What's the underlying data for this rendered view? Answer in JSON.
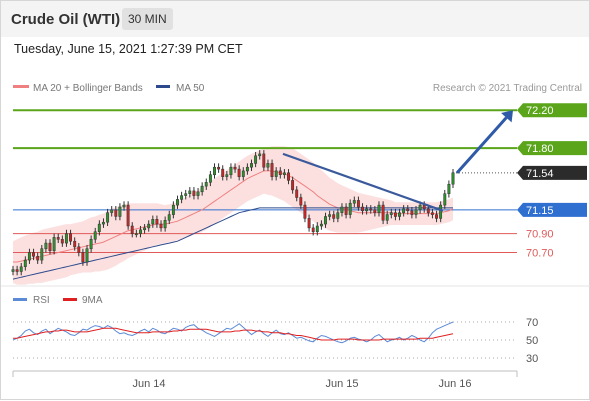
{
  "header": {
    "title": "Crude Oil (WTI)",
    "timeframe": "30 MIN",
    "timestamp": "Tuesday, June 15, 2021 1:27:39 PM CET"
  },
  "legend": {
    "ma20": "MA 20 + Bollinger Bands",
    "ma50": "MA 50",
    "ma20_color": "#f08080",
    "ma50_color": "#2c4a8c"
  },
  "copyright": "Research © 2021 Trading Central",
  "chart_data": [
    {
      "type": "candlestick",
      "title": "Crude Oil (WTI)",
      "y_range": [
        70.4,
        72.35
      ],
      "x_ticks": [
        "Jun 14",
        "Jun 15",
        "Jun 16"
      ],
      "levels": [
        {
          "value": 72.2,
          "label": "72.20",
          "color": "#5aa51a",
          "style": "resistance"
        },
        {
          "value": 71.8,
          "label": "71.80",
          "color": "#5aa51a",
          "style": "resistance"
        },
        {
          "value": 71.54,
          "label": "71.54",
          "color": "#2b2b2b",
          "style": "last price"
        },
        {
          "value": 71.15,
          "label": "71.15",
          "color": "#2f6fd0",
          "style": "pivot"
        },
        {
          "value": 70.9,
          "label": "70.90",
          "color": "#e05a5a",
          "style": "support"
        },
        {
          "value": 70.7,
          "label": "70.70",
          "color": "#e05a5a",
          "style": "support"
        }
      ],
      "closes": [
        70.52,
        70.5,
        70.55,
        70.62,
        70.7,
        70.66,
        70.62,
        70.74,
        70.8,
        70.72,
        70.86,
        70.84,
        70.8,
        70.9,
        70.82,
        70.76,
        70.7,
        70.6,
        70.74,
        70.84,
        70.92,
        71.0,
        71.02,
        71.12,
        71.15,
        71.08,
        71.18,
        71.2,
        70.98,
        70.9,
        70.9,
        70.94,
        70.96,
        71.0,
        71.05,
        71.0,
        70.96,
        71.04,
        71.1,
        71.2,
        71.26,
        71.3,
        71.32,
        71.35,
        71.3,
        71.34,
        71.4,
        71.44,
        71.52,
        71.6,
        71.58,
        71.5,
        71.52,
        71.6,
        71.58,
        71.5,
        71.56,
        71.6,
        71.64,
        71.72,
        71.74,
        71.6,
        71.64,
        71.5,
        71.56,
        71.52,
        71.54,
        71.46,
        71.36,
        71.28,
        71.2,
        71.06,
        70.96,
        70.92,
        70.98,
        71.0,
        71.08,
        71.1,
        71.06,
        71.12,
        71.18,
        71.1,
        71.22,
        71.25,
        71.18,
        71.14,
        71.16,
        71.15,
        71.12,
        71.2,
        71.04,
        71.1,
        71.12,
        71.08,
        71.12,
        71.16,
        71.14,
        71.1,
        71.15,
        71.2,
        71.16,
        71.12,
        71.1,
        71.06,
        71.2,
        71.32,
        71.42,
        71.54
      ],
      "ma20": [
        70.6,
        70.6,
        70.61,
        70.62,
        70.63,
        70.64,
        70.65,
        70.66,
        70.67,
        70.68,
        70.69,
        70.7,
        70.71,
        70.72,
        70.73,
        70.74,
        70.75,
        70.76,
        70.77,
        70.78,
        70.79,
        70.8,
        70.81,
        70.83,
        70.85,
        70.87,
        70.89,
        70.91,
        70.93,
        70.94,
        70.95,
        70.96,
        70.97,
        70.98,
        70.99,
        71.0,
        71.0,
        71.0,
        71.01,
        71.02,
        71.03,
        71.05,
        71.07,
        71.09,
        71.11,
        71.13,
        71.15,
        71.18,
        71.21,
        71.24,
        71.27,
        71.3,
        71.33,
        71.36,
        71.39,
        71.42,
        71.45,
        71.48,
        71.5,
        71.52,
        71.54,
        71.56,
        71.56,
        71.56,
        71.55,
        71.54,
        71.53,
        71.51,
        71.49,
        71.46,
        71.43,
        71.4,
        71.37,
        71.34,
        71.3,
        71.27,
        71.24,
        71.21,
        71.19,
        71.17,
        71.16,
        71.15,
        71.14,
        71.13,
        71.12,
        71.12,
        71.12,
        71.12,
        71.12,
        71.12,
        71.12,
        71.12,
        71.12,
        71.11,
        71.11,
        71.11,
        71.11,
        71.11,
        71.11,
        71.11,
        71.11,
        71.11,
        71.11,
        71.11,
        71.12,
        71.13,
        71.14,
        71.16
      ],
      "ma50": [
        70.42,
        70.43,
        70.44,
        70.45,
        70.46,
        70.47,
        70.48,
        70.49,
        70.5,
        70.51,
        70.52,
        70.53,
        70.54,
        70.55,
        70.56,
        70.57,
        70.58,
        70.59,
        70.6,
        70.61,
        70.62,
        70.63,
        70.64,
        70.65,
        70.66,
        70.67,
        70.68,
        70.69,
        70.7,
        70.71,
        70.72,
        70.73,
        70.74,
        70.75,
        70.76,
        70.77,
        70.78,
        70.79,
        70.8,
        70.81,
        70.82,
        70.84,
        70.86,
        70.88,
        70.9,
        70.92,
        70.94,
        70.96,
        70.98,
        71.0,
        71.02,
        71.04,
        71.06,
        71.08,
        71.1,
        71.12,
        71.13,
        71.14,
        71.15,
        71.16,
        71.17,
        71.17,
        71.17,
        71.17,
        71.17,
        71.17,
        71.17,
        71.17,
        71.17,
        71.17,
        71.17,
        71.17,
        71.17,
        71.17,
        71.17,
        71.17,
        71.17,
        71.17,
        71.17,
        71.17,
        71.17,
        71.17,
        71.17,
        71.17,
        71.17,
        71.17,
        71.17,
        71.17,
        71.17,
        71.17,
        71.17,
        71.17,
        71.17,
        71.17,
        71.17,
        71.17,
        71.17,
        71.17,
        71.17,
        71.17,
        71.17,
        71.17,
        71.17,
        71.17,
        71.17,
        71.17,
        71.17,
        71.17
      ],
      "bb_width": [
        0.22,
        0.24,
        0.25,
        0.26,
        0.26,
        0.27,
        0.27,
        0.28,
        0.28,
        0.28,
        0.28,
        0.28,
        0.28,
        0.28,
        0.27,
        0.27,
        0.27,
        0.27,
        0.28,
        0.29,
        0.29,
        0.3,
        0.3,
        0.31,
        0.31,
        0.31,
        0.3,
        0.3,
        0.29,
        0.28,
        0.27,
        0.26,
        0.25,
        0.24,
        0.23,
        0.22,
        0.21,
        0.2,
        0.2,
        0.2,
        0.2,
        0.21,
        0.21,
        0.22,
        0.22,
        0.23,
        0.23,
        0.24,
        0.24,
        0.24,
        0.24,
        0.24,
        0.24,
        0.24,
        0.24,
        0.24,
        0.24,
        0.24,
        0.24,
        0.24,
        0.24,
        0.24,
        0.25,
        0.26,
        0.27,
        0.28,
        0.29,
        0.3,
        0.31,
        0.31,
        0.31,
        0.31,
        0.31,
        0.31,
        0.3,
        0.3,
        0.29,
        0.28,
        0.27,
        0.26,
        0.25,
        0.24,
        0.23,
        0.22,
        0.21,
        0.2,
        0.19,
        0.18,
        0.17,
        0.16,
        0.15,
        0.14,
        0.13,
        0.12,
        0.12,
        0.12,
        0.12,
        0.12,
        0.12,
        0.12,
        0.12,
        0.12,
        0.12,
        0.12,
        0.12,
        0.12,
        0.12,
        0.12
      ],
      "trendline": {
        "from": 71.74,
        "to": 71.14
      },
      "arrow": {
        "from": 71.54,
        "to": 72.2
      }
    },
    {
      "type": "line",
      "title": "RSI",
      "y_ticks": [
        70,
        50,
        30
      ],
      "ylim": [
        20,
        80
      ],
      "series": [
        {
          "name": "RSI",
          "color": "#5b8ad6",
          "values": [
            50,
            52,
            55,
            60,
            62,
            58,
            56,
            60,
            62,
            57,
            60,
            63,
            61,
            59,
            56,
            55,
            58,
            62,
            61,
            64,
            66,
            65,
            63,
            66,
            64,
            60,
            57,
            58,
            56,
            55,
            57,
            60,
            62,
            59,
            63,
            61,
            58,
            57,
            60,
            63,
            62,
            60,
            64,
            66,
            67,
            63,
            61,
            58,
            56,
            54,
            57,
            60,
            63,
            62,
            65,
            68,
            64,
            60,
            56,
            59,
            61,
            57,
            54,
            58,
            61,
            57,
            56,
            58,
            55,
            52,
            53,
            51,
            49,
            48,
            52,
            55,
            54,
            52,
            50,
            48,
            47,
            49,
            52,
            53,
            51,
            50,
            48,
            50,
            54,
            56,
            52,
            48,
            50,
            51,
            53,
            50,
            52,
            55,
            53,
            50,
            48,
            52,
            58,
            62,
            64,
            66,
            68,
            70
          ]
        },
        {
          "name": "9MA",
          "color": "#e02020",
          "values": [
            52,
            52,
            53,
            54,
            55,
            56,
            57,
            58,
            59,
            59,
            60,
            60,
            61,
            61,
            60,
            59,
            59,
            59,
            59,
            60,
            61,
            62,
            63,
            63,
            63,
            63,
            62,
            61,
            60,
            59,
            58,
            58,
            58,
            58,
            59,
            59,
            59,
            59,
            59,
            60,
            60,
            61,
            61,
            62,
            62,
            62,
            62,
            62,
            61,
            60,
            59,
            59,
            59,
            59,
            60,
            60,
            61,
            61,
            61,
            60,
            60,
            59,
            59,
            58,
            58,
            58,
            57,
            57,
            56,
            55,
            55,
            54,
            53,
            52,
            51,
            50,
            50,
            50,
            50,
            51,
            51,
            51,
            51,
            51,
            50,
            50,
            50,
            50,
            50,
            50,
            51,
            51,
            51,
            51,
            51,
            51,
            51,
            51,
            51,
            52,
            52,
            52,
            52,
            53,
            54,
            55,
            56,
            57
          ]
        }
      ]
    }
  ]
}
